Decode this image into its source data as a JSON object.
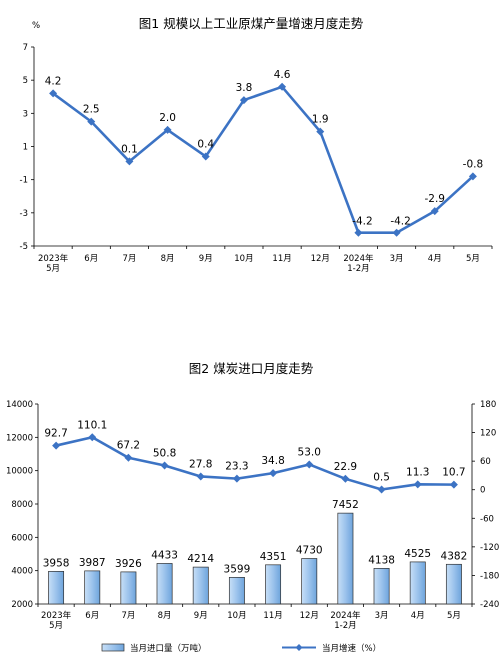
{
  "chart_data": [
    {
      "type": "line",
      "title": "图1 规模以上工业原煤产量增速月度走势",
      "unit": "%",
      "categories": [
        [
          "2023年",
          "5月"
        ],
        [
          "6月"
        ],
        [
          "7月"
        ],
        [
          "8月"
        ],
        [
          "9月"
        ],
        [
          "10月"
        ],
        [
          "11月"
        ],
        [
          "12月"
        ],
        [
          "2024年",
          "1-2月"
        ],
        [
          "3月"
        ],
        [
          "4月"
        ],
        [
          "5月"
        ]
      ],
      "values": [
        4.2,
        2.5,
        0.1,
        2.0,
        0.4,
        3.8,
        4.6,
        1.9,
        -4.2,
        -4.2,
        -2.9,
        -0.8
      ],
      "value_labels": [
        "4.2",
        "2.5",
        "0.1",
        "2.0",
        "0.4",
        "3.8",
        "4.6",
        "1.9",
        "-4.2",
        "-4.2",
        "-2.9",
        "-0.8"
      ],
      "ylim": [
        -5,
        7
      ],
      "yticks": [
        "-5",
        "-3",
        "-1",
        "1",
        "3",
        "5",
        "7"
      ],
      "grid": false,
      "line_color": "#3c73c4"
    },
    {
      "type": "bar+line",
      "title": "图2 煤炭进口月度走势",
      "categories": [
        [
          "2023年",
          "5月"
        ],
        [
          "6月"
        ],
        [
          "7月"
        ],
        [
          "8月"
        ],
        [
          "9月"
        ],
        [
          "10月"
        ],
        [
          "11月"
        ],
        [
          "12月"
        ],
        [
          "2024年",
          "1-2月"
        ],
        [
          "3月"
        ],
        [
          "4月"
        ],
        [
          "5月"
        ]
      ],
      "series": [
        {
          "name": "当月进口量（万吨）",
          "axis": "left",
          "kind": "bar",
          "values": [
            3958,
            3987,
            3926,
            4433,
            4214,
            3599,
            4351,
            4730,
            7452,
            4138,
            4525,
            4382
          ],
          "value_labels": [
            "3958",
            "3987",
            "3926",
            "4433",
            "4214",
            "3599",
            "4351",
            "4730",
            "7452",
            "4138",
            "4525",
            "4382"
          ]
        },
        {
          "name": "当月增速（%）",
          "axis": "right",
          "kind": "line",
          "values": [
            92.7,
            110.1,
            67.2,
            50.8,
            27.8,
            23.3,
            34.8,
            53.0,
            22.9,
            0.5,
            11.3,
            10.7
          ],
          "value_labels": [
            "92.7",
            "110.1",
            "67.2",
            "50.8",
            "27.8",
            "23.3",
            "34.8",
            "53.0",
            "22.9",
            "0.5",
            "11.3",
            "10.7"
          ]
        }
      ],
      "ylim_left": [
        2000,
        14000
      ],
      "yticks_left": [
        "2000",
        "4000",
        "6000",
        "8000",
        "10000",
        "12000",
        "14000"
      ],
      "ylim_right": [
        -240,
        180
      ],
      "yticks_right": [
        "-240",
        "-180",
        "-120",
        "-60",
        "0",
        "60",
        "120",
        "180"
      ],
      "legend_position": "bottom",
      "grid": false,
      "bar_color": "#9cc3ec",
      "line_color": "#3c73c4"
    }
  ]
}
